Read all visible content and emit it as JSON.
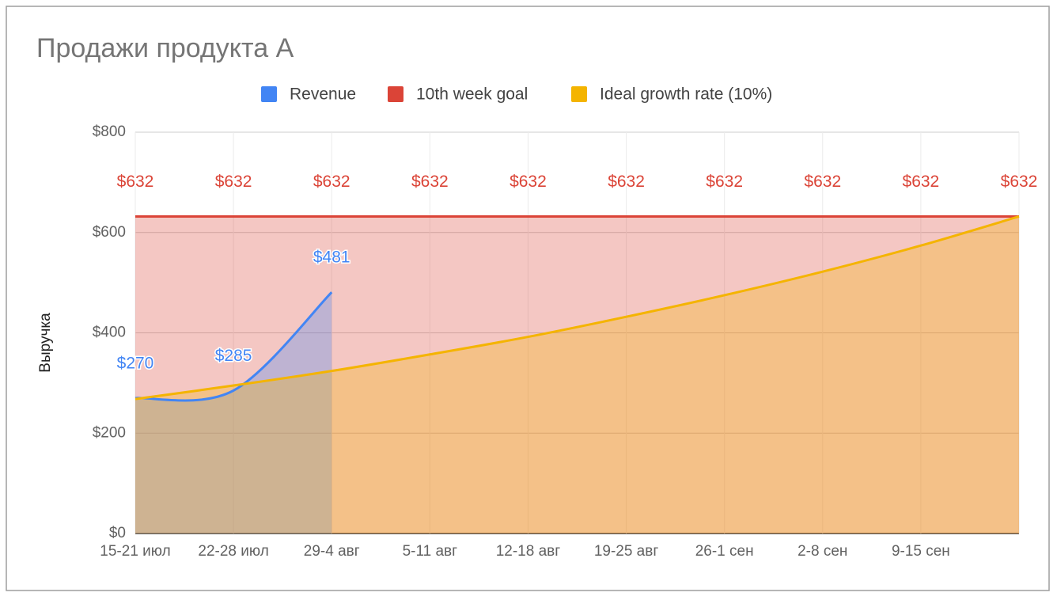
{
  "chart_data": {
    "type": "area",
    "title": "Продажи продукта А",
    "y_axis_label": "Выручка",
    "categories": [
      "15-21 июл",
      "22-28 июл",
      "29-4 авг",
      "5-11 авг",
      "12-18 авг",
      "19-25 авг",
      "26-1 сен",
      "2-8 сен",
      "9-15 сен",
      null
    ],
    "series": [
      {
        "name": "Revenue",
        "color": "#4285f4",
        "values": [
          270,
          285,
          481,
          null,
          null,
          null,
          null,
          null,
          null,
          null
        ],
        "value_labels": [
          "$270",
          "$285",
          "$481",
          null,
          null,
          null,
          null,
          null,
          null,
          null
        ]
      },
      {
        "name": "10th week goal",
        "color": "#db4437",
        "values": [
          632,
          632,
          632,
          632,
          632,
          632,
          632,
          632,
          632,
          632
        ],
        "value_labels": [
          "$632",
          "$632",
          "$632",
          "$632",
          "$632",
          "$632",
          "$632",
          "$632",
          "$632",
          "$632"
        ]
      },
      {
        "name": "Ideal growth rate (10%)",
        "color": "#f4b400",
        "values": [
          268,
          295,
          324,
          357,
          392,
          432,
          475,
          522,
          574,
          632
        ]
      }
    ],
    "ylim": [
      0,
      800
    ],
    "yticks": [
      {
        "value": 0,
        "label": "$0"
      },
      {
        "value": 200,
        "label": "$200"
      },
      {
        "value": 400,
        "label": "$400"
      },
      {
        "value": 600,
        "label": "$600"
      },
      {
        "value": 800,
        "label": "$800"
      }
    ],
    "grid": true,
    "legend": "top"
  }
}
